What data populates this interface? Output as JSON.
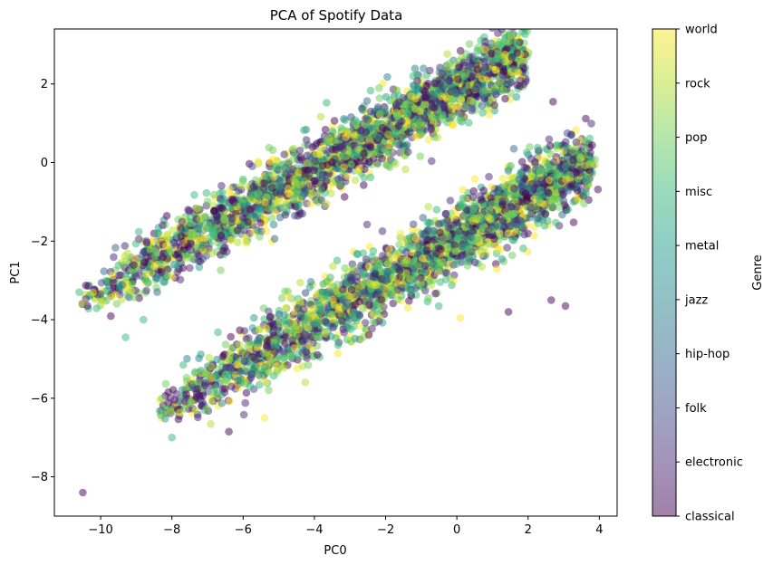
{
  "chart_data": {
    "type": "scatter",
    "title": "PCA of Spotify Data",
    "xlabel": "PC0",
    "ylabel": "PC1",
    "xlim": [
      -11.3,
      4.5
    ],
    "ylim": [
      -9.0,
      3.4
    ],
    "xticks": [
      -10,
      -8,
      -6,
      -4,
      -2,
      0,
      2,
      4
    ],
    "yticks": [
      -8,
      -6,
      -4,
      -2,
      0,
      2
    ],
    "grid": false,
    "marker_alpha": 0.5,
    "colormap": "viridis",
    "colorbar": {
      "label": "Genre",
      "categories": [
        "classical",
        "electronic",
        "folk",
        "hip-hop",
        "jazz",
        "metal",
        "misc",
        "pop",
        "rock",
        "world"
      ],
      "stops": [
        "#440154",
        "#482878",
        "#3e4989",
        "#31688e",
        "#26828e",
        "#1f9e89",
        "#35b779",
        "#6ece58",
        "#b5de2b",
        "#fde725"
      ]
    },
    "clusters": [
      {
        "name": "",
        "approx_point_count": 9000,
        "x_range": [
          -10.6,
          1.9
        ],
        "y_axis_line": {
          "slope": 0.51,
          "intercept": 1.85
        },
        "band_halfwidth": 0.75
      },
      {
        "name": "",
        "approx_point_count": 9000,
        "x_range": [
          -8.4,
          3.8
        ],
        "y_axis_line": {
          "slope": 0.52,
          "intercept": -1.95
        },
        "band_halfwidth": 0.8
      }
    ],
    "outliers": [
      {
        "x": -10.5,
        "y": -8.4,
        "genre": "classical"
      },
      {
        "x": 2.7,
        "y": 1.55,
        "genre": "classical"
      },
      {
        "x": 1.6,
        "y": 0.35,
        "genre": "hip-hop"
      },
      {
        "x": 2.65,
        "y": -3.5,
        "genre": "classical"
      },
      {
        "x": 3.05,
        "y": -3.65,
        "genre": "classical"
      },
      {
        "x": 1.45,
        "y": -3.8,
        "genre": "classical"
      },
      {
        "x": 0.1,
        "y": -3.95,
        "genre": "world"
      },
      {
        "x": -8.0,
        "y": -7.0,
        "genre": "misc"
      },
      {
        "x": -6.4,
        "y": -6.85,
        "genre": "classical"
      },
      {
        "x": -5.4,
        "y": -6.5,
        "genre": "world"
      },
      {
        "x": -9.3,
        "y": -4.45,
        "genre": "misc"
      },
      {
        "x": -10.6,
        "y": -3.3,
        "genre": "misc"
      },
      {
        "x": -8.8,
        "y": -4.0,
        "genre": "misc"
      }
    ]
  }
}
